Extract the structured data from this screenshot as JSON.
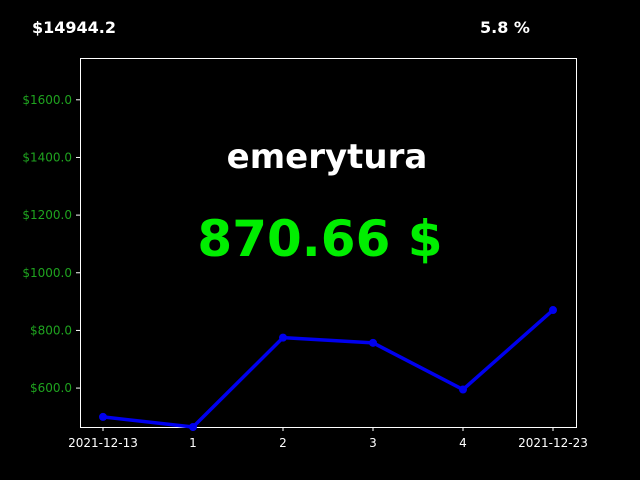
{
  "header": {
    "total": "$14944.2",
    "percent": "5.8 %"
  },
  "overlay": {
    "title": "emerytura",
    "value": "870.66 $"
  },
  "colors": {
    "background": "#000000",
    "line": "#0000ee",
    "value_text": "#00ee00",
    "ytick_text": "#1fa31f",
    "frame": "#ffffff"
  },
  "chart_data": {
    "type": "line",
    "x_tick_labels": [
      "2021-12-13",
      "1",
      "2",
      "3",
      "4",
      "2021-12-23"
    ],
    "series": [
      {
        "values": [
          500,
          465,
          775,
          757,
          595,
          870.66
        ]
      }
    ],
    "y_tick_labels": [
      "$600.0",
      "$800.0",
      "$1000.0",
      "$1200.0",
      "$1400.0",
      "$1600.0"
    ],
    "y_ticks": [
      600,
      800,
      1000,
      1200,
      1400,
      1600
    ],
    "ylim": [
      465,
      1745
    ],
    "grid": false,
    "legend": "none"
  }
}
